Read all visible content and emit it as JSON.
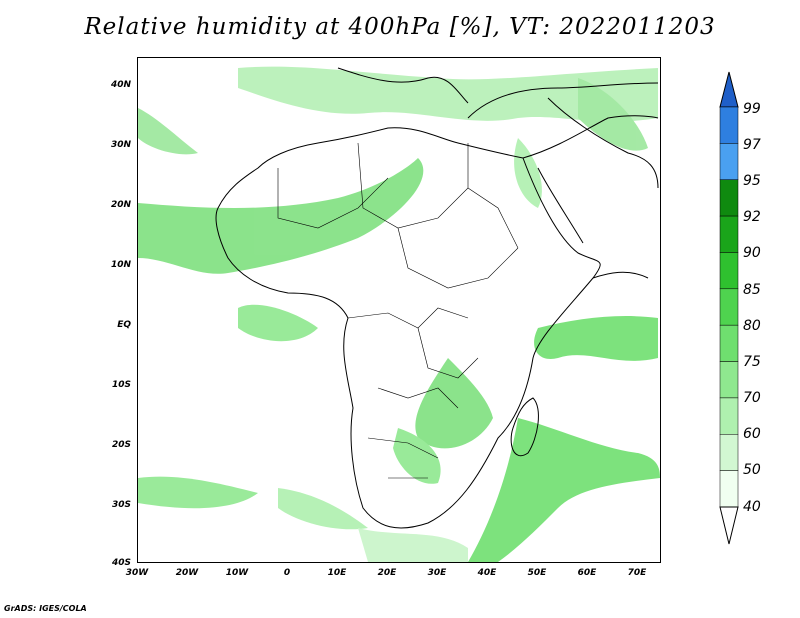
{
  "title": "Relative humidity at 400hPa [%], VT: 2022011203",
  "credit": "GrADS: IGES/COLA",
  "lat_labels": [
    "40N",
    "30N",
    "20N",
    "10N",
    "EQ",
    "10S",
    "20S",
    "30S",
    "40S"
  ],
  "lon_labels": [
    "30W",
    "20W",
    "10W",
    "0",
    "10E",
    "20E",
    "30E",
    "40E",
    "50E",
    "60E",
    "70E"
  ],
  "colorbar": {
    "levels": [
      "40",
      "50",
      "60",
      "70",
      "75",
      "80",
      "85",
      "90",
      "92",
      "95",
      "97",
      "99"
    ],
    "colors": [
      "#f0fff0",
      "#d2f7d2",
      "#aff0af",
      "#8fe88f",
      "#6fdf6f",
      "#4fd34f",
      "#2fc12f",
      "#1aa51a",
      "#0f8a0f",
      "#4aa0f0",
      "#2e7fe0",
      "#1f5fc8"
    ]
  },
  "chart_data": {
    "type": "heatmap",
    "title": "Relative humidity at 400hPa [%], VT: 2022011203",
    "x_range": [
      "30W",
      "75E"
    ],
    "y_range": [
      "40S",
      "45N"
    ],
    "levels": [
      40,
      50,
      60,
      70,
      75,
      80,
      85,
      90,
      92,
      95,
      97,
      99
    ]
  }
}
